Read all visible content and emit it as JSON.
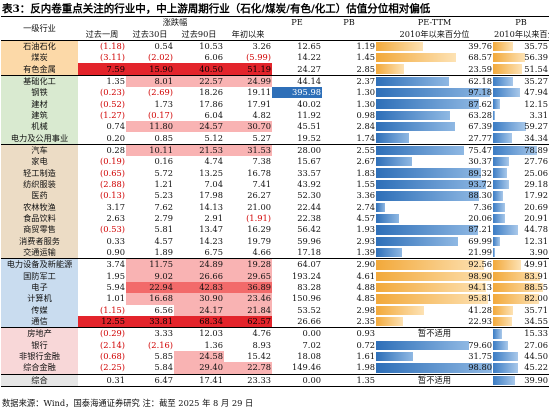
{
  "title": "表3：反内卷重点关注的行业中，中上游周期行业（石化/煤炭/有色/化工）估值分位相对偏低",
  "headers": {
    "industry": "一级行业",
    "change_group": "涨跌幅",
    "pe": "PE",
    "pb": "PB",
    "pe_ttm": "PE-TTM",
    "pb_pct": "PB",
    "w1": "过去一周",
    "d30": "过去30日",
    "d90": "过去90日",
    "ytd": "年初以来",
    "pe_pct_sub": "2010年以来百分位",
    "pb_pct_sub": "2010年以来百分位"
  },
  "rows": [
    {
      "name": "石油石化",
      "group": "orange",
      "w1": "(1.18)",
      "d30": "0.54",
      "d90": "10.53",
      "ytd": "3.26",
      "pe": "12.65",
      "pb": "1.19",
      "pe_pct": "39.76",
      "pe_pct_v": 39.76,
      "pb_pct": "35.75",
      "pb_pct_v": 35.75
    },
    {
      "name": "煤炭",
      "group": "orange",
      "w1": "(3.11)",
      "d30": "(2.02)",
      "d90": "6.06",
      "ytd": "(5.99)",
      "pe": "14.22",
      "pb": "1.45",
      "pe_pct": "68.57",
      "pe_pct_v": 68.57,
      "pb_pct": "56.39",
      "pb_pct_v": 56.39
    },
    {
      "name": "有色金属",
      "group": "orange",
      "w1": "7.59",
      "d30": "15.90",
      "d90": "40.50",
      "ytd": "51.19",
      "pe": "24.27",
      "pb": "2.85",
      "pe_pct": "23.59",
      "pe_pct_v": 23.59,
      "pb_pct": "51.54",
      "pb_pct_v": 51.54
    },
    {
      "name": "基础化工",
      "group": "green",
      "w1": "1.35",
      "d30": "8.01",
      "d90": "22.57",
      "ytd": "24.99",
      "pe": "44.14",
      "pb": "2.37",
      "pe_pct": "62.18",
      "pe_pct_v": 62.18,
      "pb_pct": "35.27",
      "pb_pct_v": 35.27
    },
    {
      "name": "钢铁",
      "group": "green",
      "w1": "(0.23)",
      "d30": "(2.69)",
      "d90": "18.26",
      "ytd": "19.11",
      "pe": "395.98",
      "pb": "1.30",
      "pe_pct": "97.18",
      "pe_pct_v": 97.18,
      "pb_pct": "47.94",
      "pb_pct_v": 47.94
    },
    {
      "name": "建材",
      "group": "green",
      "w1": "(0.52)",
      "d30": "1.73",
      "d90": "17.86",
      "ytd": "17.91",
      "pe": "40.02",
      "pb": "1.30",
      "pe_pct": "87.62",
      "pe_pct_v": 87.62,
      "pb_pct": "12.15",
      "pb_pct_v": 12.15
    },
    {
      "name": "建筑",
      "group": "green",
      "w1": "(1.27)",
      "d30": "(0.17)",
      "d90": "6.04",
      "ytd": "4.82",
      "pe": "11.92",
      "pb": "0.98",
      "pe_pct": "63.28",
      "pe_pct_v": 63.28,
      "pb_pct": "3.31",
      "pb_pct_v": 3.31
    },
    {
      "name": "机械",
      "group": "green",
      "w1": "0.74",
      "d30": "11.80",
      "d90": "24.57",
      "ytd": "30.70",
      "pe": "45.51",
      "pb": "2.84",
      "pe_pct": "67.39",
      "pe_pct_v": 67.39,
      "pb_pct": "59.27",
      "pb_pct_v": 59.27
    },
    {
      "name": "电力及公用事业",
      "group": "green",
      "w1": "0.20",
      "d30": "0.85",
      "d90": "5.12",
      "ytd": "5.27",
      "pe": "19.52",
      "pb": "1.74",
      "pe_pct": "27.77",
      "pe_pct_v": 27.77,
      "pb_pct": "34.34",
      "pb_pct_v": 34.34
    },
    {
      "name": "汽车",
      "group": "tan",
      "w1": "0.28",
      "d30": "10.11",
      "d90": "21.53",
      "ytd": "31.53",
      "pe": "28.00",
      "pb": "2.55",
      "pe_pct": "75.47",
      "pe_pct_v": 75.47,
      "pb_pct": "78.89",
      "pb_pct_v": 78.89
    },
    {
      "name": "家电",
      "group": "tan",
      "w1": "(0.19)",
      "d30": "0.16",
      "d90": "4.74",
      "ytd": "7.38",
      "pe": "15.67",
      "pb": "2.67",
      "pe_pct": "30.37",
      "pe_pct_v": 30.37,
      "pb_pct": "27.76",
      "pb_pct_v": 27.76
    },
    {
      "name": "轻工制造",
      "group": "tan",
      "w1": "(0.65)",
      "d30": "5.72",
      "d90": "13.25",
      "ytd": "16.78",
      "pe": "33.57",
      "pb": "1.83",
      "pe_pct": "89.32",
      "pe_pct_v": 89.32,
      "pb_pct": "25.06",
      "pb_pct_v": 25.06
    },
    {
      "name": "纺织服装",
      "group": "tan",
      "w1": "(2.88)",
      "d30": "1.21",
      "d90": "7.04",
      "ytd": "7.41",
      "pe": "43.92",
      "pb": "1.55",
      "pe_pct": "93.72",
      "pe_pct_v": 93.72,
      "pb_pct": "29.18",
      "pb_pct_v": 29.18
    },
    {
      "name": "医药",
      "group": "tan",
      "w1": "(0.13)",
      "d30": "5.23",
      "d90": "17.98",
      "ytd": "26.27",
      "pe": "52.30",
      "pb": "3.36",
      "pe_pct": "88.30",
      "pe_pct_v": 88.3,
      "pb_pct": "17.92",
      "pb_pct_v": 17.92
    },
    {
      "name": "农林牧渔",
      "group": "tan",
      "w1": "3.17",
      "d30": "7.62",
      "d90": "14.13",
      "ytd": "21.00",
      "pe": "22.44",
      "pb": "2.74",
      "pe_pct": "7.36",
      "pe_pct_v": 7.36,
      "pb_pct": "20.69",
      "pb_pct_v": 20.69
    },
    {
      "name": "食品饮料",
      "group": "tan",
      "w1": "2.63",
      "d30": "2.79",
      "d90": "2.91",
      "ytd": "(1.91)",
      "pe": "22.38",
      "pb": "4.57",
      "pe_pct": "20.06",
      "pe_pct_v": 20.06,
      "pb_pct": "20.91",
      "pb_pct_v": 20.91
    },
    {
      "name": "商贸零售",
      "group": "tan",
      "w1": "(0.53)",
      "d30": "5.81",
      "d90": "13.47",
      "ytd": "16.29",
      "pe": "56.42",
      "pb": "1.93",
      "pe_pct": "87.21",
      "pe_pct_v": 87.21,
      "pb_pct": "44.78",
      "pb_pct_v": 44.78
    },
    {
      "name": "消费者服务",
      "group": "tan",
      "w1": "0.33",
      "d30": "4.57",
      "d90": "14.23",
      "ytd": "19.79",
      "pe": "59.96",
      "pb": "2.93",
      "pe_pct": "69.99",
      "pe_pct_v": 69.99,
      "pb_pct": "12.31",
      "pb_pct_v": 12.31
    },
    {
      "name": "交通运输",
      "group": "tan",
      "w1": "0.90",
      "d30": "1.89",
      "d90": "6.75",
      "ytd": "4.66",
      "pe": "17.18",
      "pb": "1.39",
      "pe_pct": "21.99",
      "pe_pct_v": 21.99,
      "pb_pct": "3.90",
      "pb_pct_v": 3.9
    },
    {
      "name": "电力设备及新能源",
      "group": "blue",
      "w1": "3.74",
      "d30": "11.75",
      "d90": "24.89",
      "ytd": "19.28",
      "pe": "64.07",
      "pb": "2.90",
      "pe_pct": "92.56",
      "pe_pct_v": 92.56,
      "pb_pct": "49.91",
      "pb_pct_v": 49.91
    },
    {
      "name": "国防军工",
      "group": "blue",
      "w1": "1.95",
      "d30": "9.02",
      "d90": "26.66",
      "ytd": "29.65",
      "pe": "193.24",
      "pb": "4.61",
      "pe_pct": "98.90",
      "pe_pct_v": 98.9,
      "pb_pct": "83.91",
      "pb_pct_v": 83.91
    },
    {
      "name": "电子",
      "group": "blue",
      "w1": "5.94",
      "d30": "22.94",
      "d90": "42.83",
      "ytd": "36.89",
      "pe": "83.28",
      "pb": "4.88",
      "pe_pct": "94.13",
      "pe_pct_v": 94.13,
      "pb_pct": "88.55",
      "pb_pct_v": 88.55
    },
    {
      "name": "计算机",
      "group": "blue",
      "w1": "1.01",
      "d30": "16.68",
      "d90": "30.90",
      "ytd": "23.46",
      "pe": "150.96",
      "pb": "4.85",
      "pe_pct": "95.81",
      "pe_pct_v": 95.81,
      "pb_pct": "82.00",
      "pb_pct_v": 82.0
    },
    {
      "name": "传媒",
      "group": "blue",
      "w1": "(1.15)",
      "d30": "6.56",
      "d90": "24.17",
      "ytd": "21.84",
      "pe": "53.52",
      "pb": "2.98",
      "pe_pct": "41.28",
      "pe_pct_v": 41.28,
      "pb_pct": "35.71",
      "pb_pct_v": 35.71
    },
    {
      "name": "通信",
      "group": "blue",
      "w1": "12.55",
      "d30": "33.81",
      "d90": "68.34",
      "ytd": "62.57",
      "pe": "26.66",
      "pb": "2.35",
      "pe_pct": "22.93",
      "pe_pct_v": 22.93,
      "pb_pct": "34.55",
      "pb_pct_v": 34.55
    },
    {
      "name": "房地产",
      "group": "pink",
      "w1": "(0.29)",
      "d30": "3.33",
      "d90": "12.03",
      "ytd": "4.76",
      "pe": "0.00",
      "pb": "0.93",
      "pe_pct": "暂不适用",
      "pe_pct_v": null,
      "pb_pct": "15.33",
      "pb_pct_v": 15.33
    },
    {
      "name": "银行",
      "group": "pink",
      "w1": "(2.14)",
      "d30": "(2.16)",
      "d90": "1.36",
      "ytd": "8.93",
      "pe": "7.02",
      "pb": "0.72",
      "pe_pct": "79.60",
      "pe_pct_v": 79.6,
      "pb_pct": "27.06",
      "pb_pct_v": 27.06
    },
    {
      "name": "非银行金融",
      "group": "pink",
      "w1": "(0.68)",
      "d30": "5.85",
      "d90": "24.58",
      "ytd": "15.42",
      "pe": "18.08",
      "pb": "1.61",
      "pe_pct": "31.75",
      "pe_pct_v": 31.75,
      "pb_pct": "44.50",
      "pb_pct_v": 44.5
    },
    {
      "name": "综合金融",
      "group": "pink",
      "w1": "(2.25)",
      "d30": "5.84",
      "d90": "29.40",
      "ytd": "22.78",
      "pe": "149.46",
      "pb": "1.98",
      "pe_pct": "98.80",
      "pe_pct_v": 98.8,
      "pb_pct": "45.22",
      "pb_pct_v": 45.22
    },
    {
      "name": "综合",
      "group": "gray",
      "w1": "0.31",
      "d30": "6.47",
      "d90": "17.41",
      "ytd": "23.33",
      "pe": "0.00",
      "pb": "1.35",
      "pe_pct": "暂不适用",
      "pe_pct_v": null,
      "pb_pct": "39.90",
      "pb_pct_v": 39.9
    }
  ],
  "highlights": {
    "deep": [
      "7.59",
      "15.90",
      "40.50",
      "51.19",
      "12.55",
      "33.81",
      "68.34",
      "62.57"
    ],
    "mid": [
      "22.94",
      "42.83",
      "36.89"
    ],
    "light": [
      "8.01",
      "22.57",
      "24.99",
      "11.80",
      "24.57",
      "30.70",
      "10.11",
      "21.53",
      "31.53",
      "11.75",
      "24.89",
      "19.28",
      "9.02",
      "26.66",
      "29.65",
      "16.68",
      "30.90",
      "23.46",
      "24.17",
      "21.84",
      "29.40",
      "22.78",
      "24.58"
    ],
    "na_text": "暂不适用"
  },
  "colors": {
    "orange_group": "#fcd9a8",
    "green_group": "#d9ead0",
    "tan_group": "#ecdcc5",
    "blue_group": "#c9dcef",
    "pink_group": "#f8d7d8",
    "gray_group": "#e6e6e6",
    "negative_text": "#d00000",
    "pe_bar_blue": "#2e6fb8",
    "pe_bar_orange": "#f2a93b"
  },
  "source": "数据来源：Wind，国泰海通证券研究  注：截至 2025 年 8 月 29 日"
}
